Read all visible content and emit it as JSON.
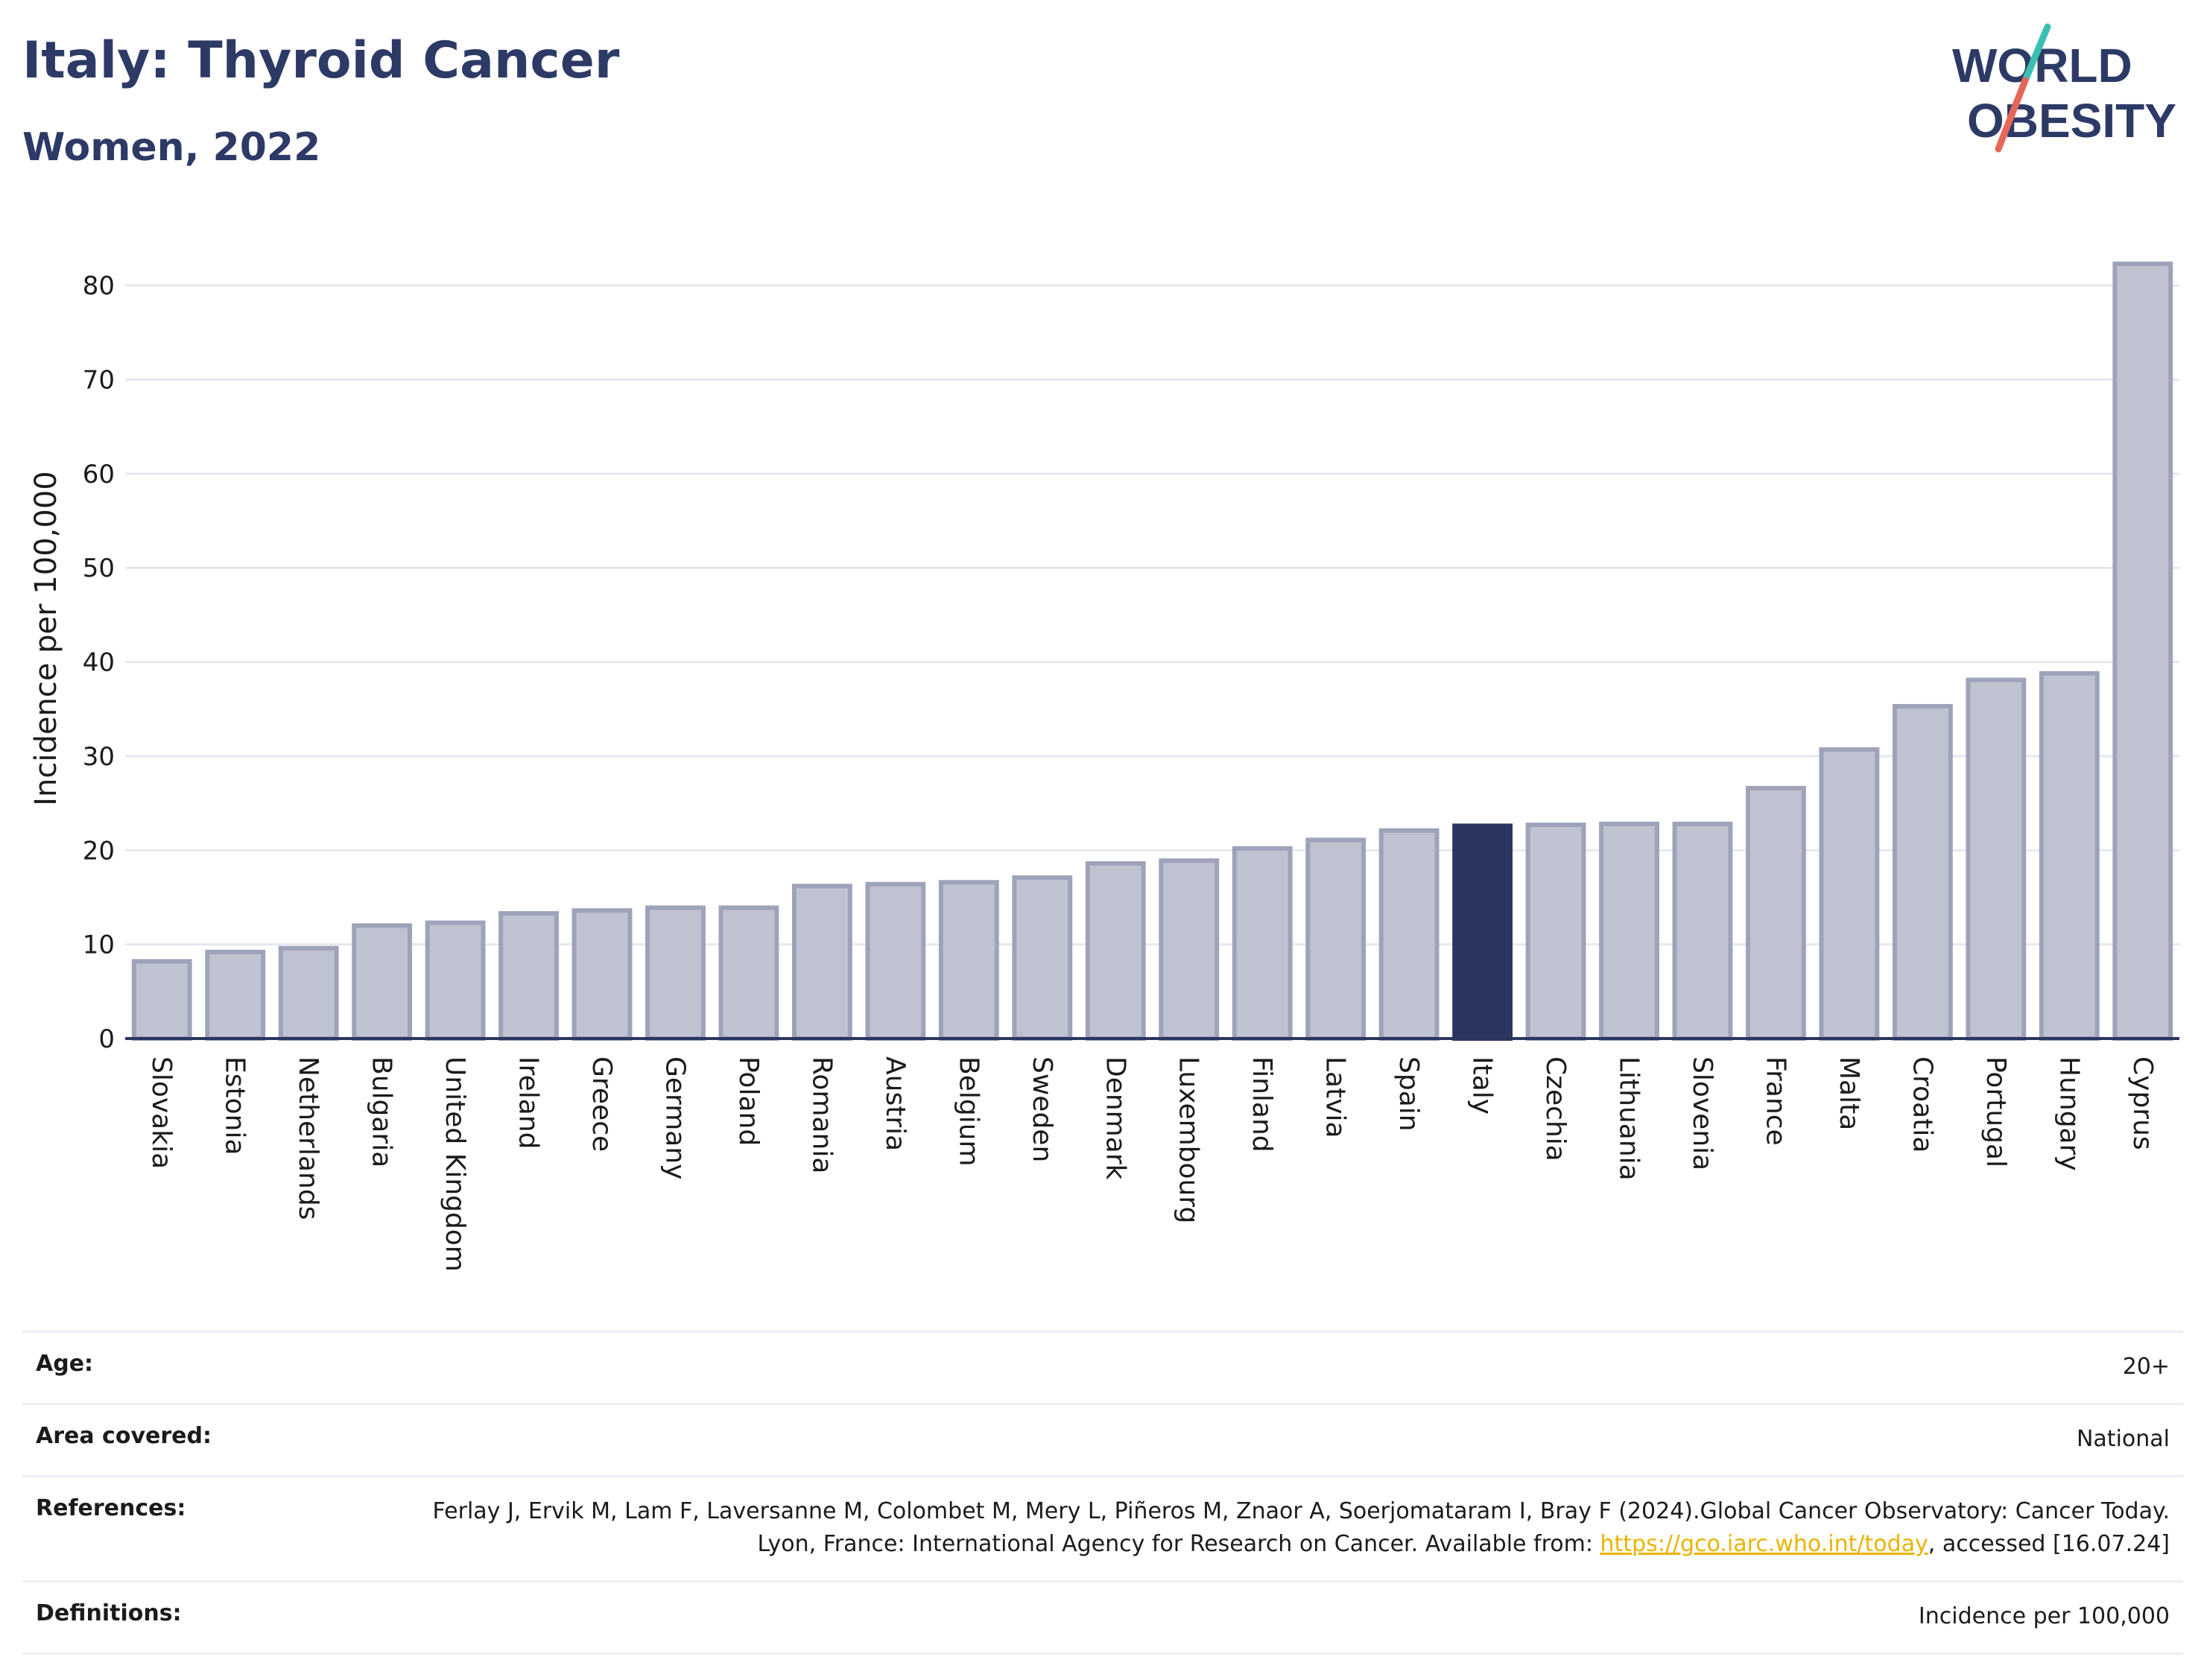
{
  "header": {
    "title": "Italy: Thyroid Cancer",
    "subtitle": "Women, 2022",
    "logo_line1": "WORLD",
    "logo_line2": "OBESITY"
  },
  "colors": {
    "bar_default": "#bfc3d1",
    "bar_default_border": "#9ea3ba",
    "bar_highlight": "#2b3660",
    "title": "#2d3a66",
    "logo_teal": "#3bbfb3",
    "logo_coral": "#e5675a",
    "link": "#e9b400"
  },
  "chart_data": {
    "type": "bar",
    "title": "Italy: Thyroid Cancer",
    "subtitle": "Women, 2022",
    "xlabel": "",
    "ylabel": "Incidence per 100,000",
    "ylim": [
      0,
      85
    ],
    "yticks": [
      0,
      10,
      20,
      30,
      40,
      50,
      60,
      70,
      80
    ],
    "grid": true,
    "highlight": "Italy",
    "categories": [
      "Slovakia",
      "Estonia",
      "Netherlands",
      "Bulgaria",
      "United Kingdom",
      "Ireland",
      "Greece",
      "Germany",
      "Poland",
      "Romania",
      "Austria",
      "Belgium",
      "Sweden",
      "Denmark",
      "Luxembourg",
      "Finland",
      "Latvia",
      "Spain",
      "Italy",
      "Czechia",
      "Lithuania",
      "Slovenia",
      "France",
      "Malta",
      "Croatia",
      "Portugal",
      "Hungary",
      "Cyprus"
    ],
    "values": [
      8.2,
      9.2,
      9.6,
      12.0,
      12.3,
      13.3,
      13.6,
      13.9,
      13.9,
      16.2,
      16.4,
      16.6,
      17.1,
      18.6,
      18.9,
      20.2,
      21.1,
      22.1,
      22.6,
      22.7,
      22.8,
      22.8,
      26.6,
      30.7,
      35.3,
      38.1,
      38.8,
      82.3
    ]
  },
  "meta": {
    "age_label": "Age:",
    "age_value": "20+",
    "area_label": "Area covered:",
    "area_value": "National",
    "references_label": "References:",
    "references_text": "Ferlay J, Ervik M, Lam F, Laversanne M, Colombet M, Mery L, Piñeros M, Znaor A, Soerjomataram I, Bray F (2024).Global Cancer Observatory: Cancer Today. Lyon, France: International Agency for Research on Cancer. Available from: ",
    "references_link": "https://gco.iarc.who.int/today",
    "references_suffix": ", accessed [16.07.24]",
    "definitions_label": "Definitions:",
    "definitions_value": "Incidence per 100,000"
  }
}
